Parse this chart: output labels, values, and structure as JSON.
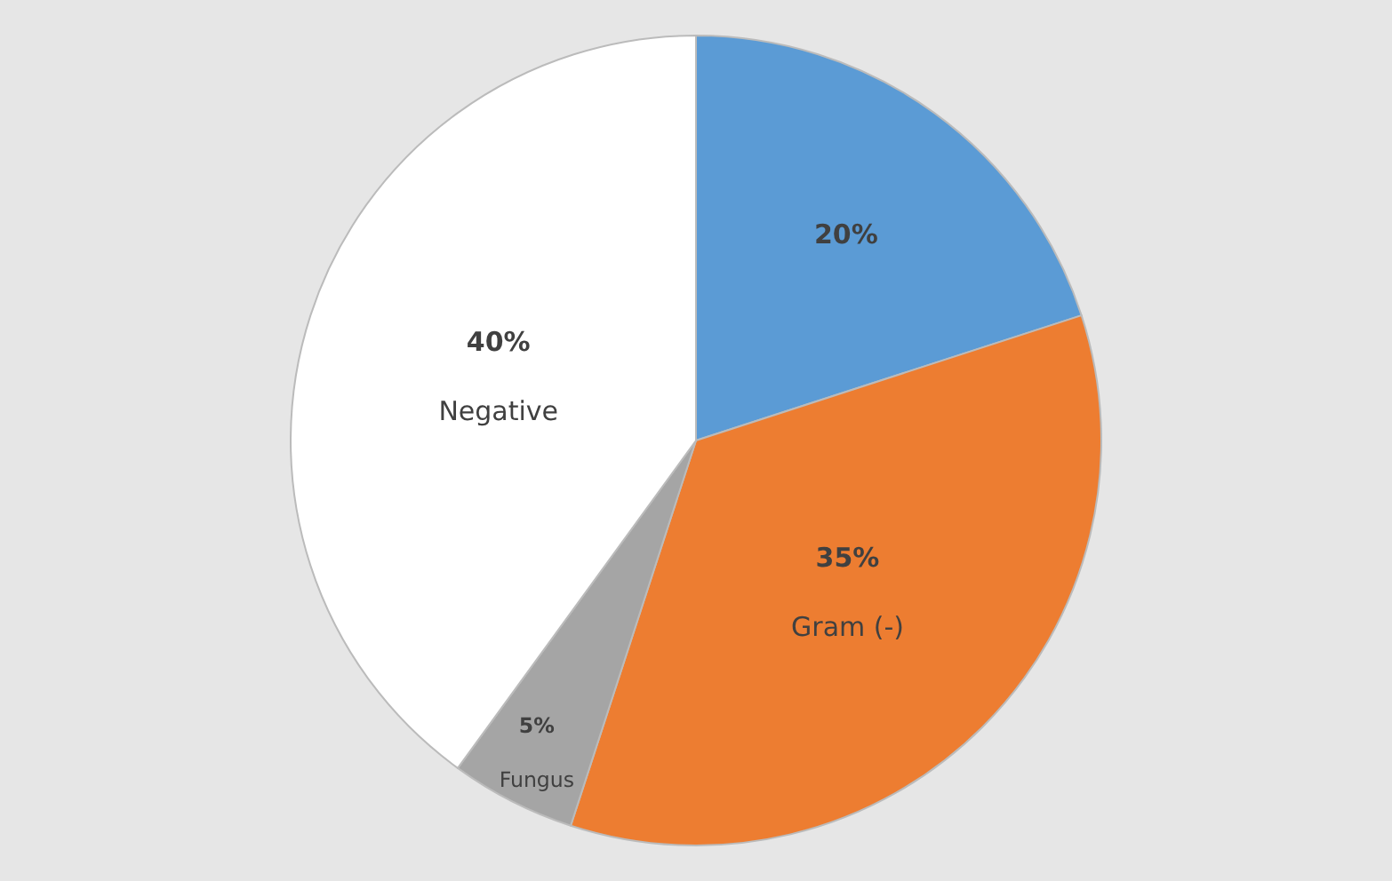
{
  "chart_data": {
    "type": "pie",
    "categories": [
      null,
      "Gram (-)",
      "Fungus",
      "Negative"
    ],
    "values": [
      20,
      35,
      5,
      40
    ],
    "colors": [
      "#5b9bd5",
      "#ed7d31",
      "#a5a5a5",
      "#ffffff"
    ],
    "value_labels": [
      "20%",
      "35%",
      "5%",
      "40%"
    ],
    "legend": false
  }
}
